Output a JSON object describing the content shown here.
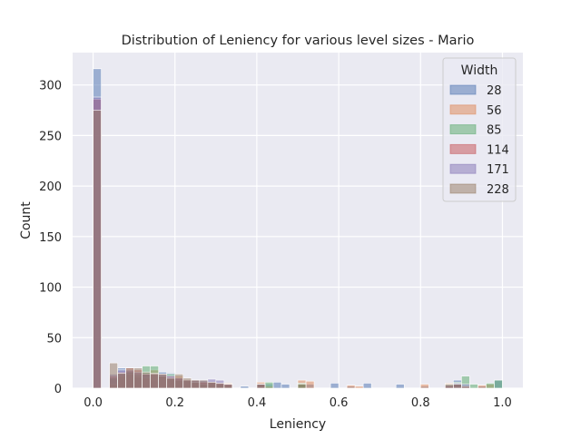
{
  "chart_data": {
    "type": "bar",
    "title": "Distribution of Leniency for various level sizes - Mario",
    "xlabel": "Leniency",
    "ylabel": "Count",
    "xlim": [
      -0.05,
      1.05
    ],
    "ylim": [
      0,
      332
    ],
    "x_ticks": [
      0.0,
      0.2,
      0.4,
      0.6,
      0.8,
      1.0
    ],
    "x_tick_labels": [
      "0.0",
      "0.2",
      "0.4",
      "0.6",
      "0.8",
      "1.0"
    ],
    "y_ticks": [
      0,
      50,
      100,
      150,
      200,
      250,
      300
    ],
    "y_tick_labels": [
      "0",
      "50",
      "100",
      "150",
      "200",
      "250",
      "300"
    ],
    "grid": true,
    "legend_position": "top-right",
    "legend_title": "Width",
    "bin_width": 0.02,
    "bin_starts": [
      0.0,
      0.02,
      0.04,
      0.06,
      0.08,
      0.1,
      0.12,
      0.14,
      0.16,
      0.18,
      0.2,
      0.22,
      0.24,
      0.26,
      0.28,
      0.3,
      0.32,
      0.34,
      0.36,
      0.38,
      0.4,
      0.42,
      0.44,
      0.46,
      0.48,
      0.5,
      0.52,
      0.54,
      0.56,
      0.58,
      0.6,
      0.62,
      0.64,
      0.66,
      0.68,
      0.7,
      0.72,
      0.74,
      0.76,
      0.78,
      0.8,
      0.82,
      0.84,
      0.86,
      0.88,
      0.9,
      0.92,
      0.94,
      0.96,
      0.98
    ],
    "series": [
      {
        "name": "28",
        "color": "#4c72b0",
        "values": [
          316,
          0,
          10,
          20,
          16,
          10,
          15,
          8,
          16,
          15,
          10,
          8,
          8,
          6,
          4,
          4,
          3,
          0,
          2,
          0,
          3,
          4,
          6,
          4,
          0,
          4,
          4,
          0,
          0,
          5,
          0,
          2,
          0,
          5,
          0,
          0,
          0,
          4,
          0,
          0,
          2,
          0,
          0,
          2,
          8,
          4,
          0,
          2,
          0,
          8
        ]
      },
      {
        "name": "56",
        "color": "#dd8452",
        "values": [
          0,
          0,
          4,
          12,
          14,
          12,
          10,
          18,
          14,
          10,
          12,
          8,
          8,
          6,
          6,
          4,
          5,
          0,
          0,
          0,
          6,
          2,
          0,
          0,
          0,
          8,
          7,
          0,
          0,
          0,
          0,
          3,
          2,
          0,
          0,
          0,
          0,
          0,
          0,
          0,
          4,
          0,
          0,
          5,
          0,
          0,
          0,
          3,
          4,
          0
        ]
      },
      {
        "name": "85",
        "color": "#55a868",
        "values": [
          0,
          0,
          10,
          14,
          16,
          14,
          22,
          22,
          12,
          14,
          8,
          8,
          6,
          4,
          6,
          4,
          3,
          0,
          0,
          0,
          4,
          6,
          0,
          0,
          0,
          5,
          0,
          0,
          0,
          0,
          0,
          0,
          0,
          0,
          0,
          0,
          0,
          0,
          0,
          0,
          0,
          0,
          0,
          4,
          6,
          12,
          4,
          0,
          5,
          8
        ]
      },
      {
        "name": "114",
        "color": "#c44e52",
        "values": [
          286,
          0,
          12,
          16,
          20,
          18,
          14,
          14,
          12,
          12,
          10,
          8,
          6,
          6,
          6,
          5,
          4,
          0,
          0,
          0,
          4,
          0,
          0,
          0,
          0,
          0,
          0,
          0,
          0,
          0,
          0,
          0,
          0,
          0,
          0,
          0,
          0,
          0,
          0,
          0,
          0,
          0,
          0,
          2,
          4,
          2,
          0,
          0,
          0,
          0
        ]
      },
      {
        "name": "171",
        "color": "#8172b3",
        "values": [
          288,
          0,
          14,
          18,
          18,
          16,
          14,
          14,
          14,
          12,
          10,
          8,
          8,
          8,
          9,
          8,
          4,
          0,
          0,
          0,
          4,
          0,
          0,
          0,
          0,
          0,
          0,
          0,
          0,
          0,
          0,
          0,
          0,
          0,
          0,
          0,
          0,
          0,
          0,
          0,
          0,
          0,
          0,
          3,
          5,
          4,
          0,
          0,
          0,
          0
        ]
      },
      {
        "name": "228",
        "color": "#937860",
        "values": [
          275,
          0,
          25,
          15,
          20,
          20,
          16,
          15,
          14,
          10,
          14,
          10,
          8,
          8,
          6,
          5,
          4,
          0,
          0,
          0,
          4,
          0,
          0,
          0,
          0,
          4,
          0,
          0,
          0,
          0,
          0,
          0,
          0,
          0,
          0,
          0,
          0,
          0,
          0,
          0,
          0,
          0,
          0,
          4,
          4,
          2,
          0,
          0,
          0,
          0
        ]
      }
    ]
  }
}
